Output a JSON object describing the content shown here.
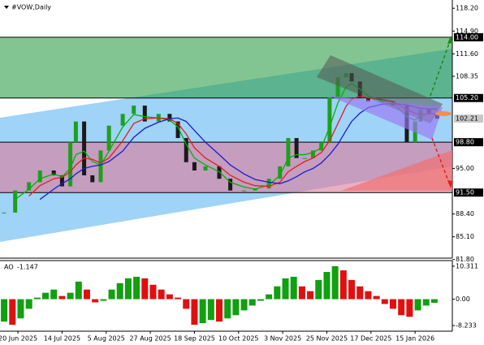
{
  "chart_data": [
    {
      "type": "candlestick",
      "title": "#VOW,Daily",
      "x": [
        0,
        4,
        9,
        13,
        18,
        21,
        24,
        26,
        29,
        32,
        35,
        38,
        43,
        47,
        51,
        56,
        60,
        63,
        66,
        69,
        73,
        78,
        82,
        87,
        91,
        96,
        100,
        103,
        106,
        109,
        112,
        115,
        118,
        121,
        124,
        126,
        129,
        132,
        137,
        141,
        146,
        149,
        151,
        154,
        157
      ],
      "close": [
        88.6,
        91.8,
        93.0,
        94.7,
        94.0,
        92.4,
        98.8,
        101.8,
        94.0,
        93.0,
        97.6,
        101.2,
        102.9,
        104.1,
        101.8,
        102.9,
        101.8,
        99.4,
        95.9,
        94.7,
        95.3,
        93.5,
        91.8,
        91.8,
        92.1,
        93.5,
        95.3,
        99.4,
        96.5,
        96.5,
        97.6,
        98.8,
        105.3,
        108.2,
        108.8,
        107.6,
        105.3,
        104.7,
        104.7,
        104.1,
        98.8,
        101.8,
        103.5,
        102.9,
        102.21
      ],
      "up_color": "#1f9e1f",
      "down_color": "#1a1a1a",
      "series": [
        {
          "color": "#00b400",
          "values": [
            null,
            90.5,
            92,
            93.5,
            94.2,
            93.8,
            95,
            97,
            97.5,
            96,
            95.5,
            97.5,
            101,
            102.8,
            102.5,
            102.3,
            102,
            101,
            98.5,
            96.5,
            95.5,
            94.5,
            93,
            92.3,
            92,
            92.6,
            94,
            96.5,
            97,
            97,
            97.3,
            98,
            101,
            104.5,
            106.8,
            107.3,
            106.5,
            105.5,
            104.8,
            104.5,
            102.5,
            102,
            102.6,
            103,
            102.8
          ]
        },
        {
          "color": "#e0201c",
          "values": [
            null,
            null,
            91,
            92.5,
            93.5,
            93.7,
            94.5,
            95.5,
            96.5,
            96.3,
            95.8,
            96.5,
            99,
            101.5,
            102.2,
            102.3,
            102.2,
            101.5,
            100,
            98,
            96.5,
            95.3,
            94,
            93,
            92.5,
            92.4,
            93,
            94.5,
            95.3,
            96,
            96.5,
            97.3,
            99,
            101.5,
            104,
            105,
            105.5,
            105.2,
            105,
            104.7,
            103.5,
            103,
            102.8,
            102.9,
            102.9
          ]
        },
        {
          "color": "#1c1cd0",
          "values": [
            null,
            null,
            null,
            90.5,
            92,
            92.8,
            93.5,
            94.2,
            95,
            95.3,
            95.5,
            96,
            97.5,
            99.5,
            100.8,
            101.7,
            102.2,
            102.3,
            101.8,
            100.5,
            98.8,
            97,
            95.5,
            94.2,
            93.4,
            93,
            92.8,
            93.2,
            93.8,
            94.5,
            95,
            95.8,
            97,
            98.5,
            100.5,
            101.8,
            103,
            103.8,
            104.3,
            104.4,
            104.2,
            103.9,
            103.7,
            103.6,
            103.6
          ]
        }
      ],
      "xlim": [
        -1.5,
        162.5
      ],
      "ylim": [
        82.0,
        119.4
      ],
      "yticks": [
        {
          "value": 118.2,
          "label": "118.20"
        },
        {
          "value": 114.9,
          "label": "114.90"
        },
        {
          "value": 111.6,
          "label": "111.60"
        },
        {
          "value": 108.35,
          "label": "108.35"
        },
        {
          "value": 95,
          "label": "95.00"
        },
        {
          "value": 88.4,
          "label": "88.40"
        },
        {
          "value": 85.1,
          "label": "85.10"
        },
        {
          "value": 81.8,
          "label": "81.80"
        }
      ],
      "levels": [
        {
          "value": 114,
          "label": "114.00"
        },
        {
          "value": 105.2,
          "label": "105.20"
        },
        {
          "value": 98.8,
          "label": "98.80"
        },
        {
          "value": 91.5,
          "label": "91.50"
        }
      ],
      "current_price": 102.21
    },
    {
      "type": "bar",
      "title": "AO",
      "current_value": -1.147,
      "x": [
        0,
        3,
        6,
        9,
        12,
        15,
        18,
        21,
        24,
        27,
        30,
        33,
        36,
        39,
        42,
        45,
        48,
        51,
        54,
        57,
        60,
        63,
        66,
        69,
        72,
        75,
        78,
        81,
        84,
        87,
        90,
        93,
        96,
        99,
        102,
        105,
        108,
        111,
        114,
        117,
        120,
        123,
        126,
        129,
        132,
        135,
        138,
        141,
        144,
        147,
        150,
        153,
        156
      ],
      "values": [
        -7,
        -8,
        -6,
        -3,
        0.5,
        2,
        3,
        1,
        2,
        5.5,
        3,
        -1,
        -0.5,
        3,
        5,
        6.5,
        7,
        6.5,
        4.5,
        3,
        1.5,
        0.5,
        -3,
        -8,
        -7.5,
        -6.5,
        -7,
        -6,
        -5,
        -3.5,
        -2,
        -0.5,
        1.5,
        4,
        6.5,
        7,
        4,
        2.5,
        6,
        8.5,
        10.3,
        9,
        6,
        4,
        2.5,
        1,
        -1.5,
        -3,
        -5,
        -5.5,
        -3.5,
        -2,
        -1.147
      ],
      "up_color": "#10a010",
      "down_color": "#e01010",
      "xlim": [
        -1.5,
        162.5
      ],
      "ylim": [
        -10,
        11.8
      ],
      "yticks": [
        10.311,
        {
          "value": 0,
          "label": "0.00"
        },
        -8.233
      ],
      "xticks": [
        {
          "value": 5,
          "label": "20 Jun 2025"
        },
        {
          "value": 21,
          "label": "14 Jul 2025"
        },
        {
          "value": 37,
          "label": "5 Aug 2025"
        },
        {
          "value": 53,
          "label": "27 Aug 2025"
        },
        {
          "value": 69,
          "label": "18 Sep 2025"
        },
        {
          "value": 85,
          "label": "10 Oct 2025"
        },
        {
          "value": 101,
          "label": "3 Nov 2025"
        },
        {
          "value": 117,
          "label": "25 Nov 2025"
        },
        {
          "value": 133,
          "label": "17 Dec 2025"
        },
        {
          "value": 149,
          "label": "15 Jan 2026"
        }
      ]
    }
  ]
}
